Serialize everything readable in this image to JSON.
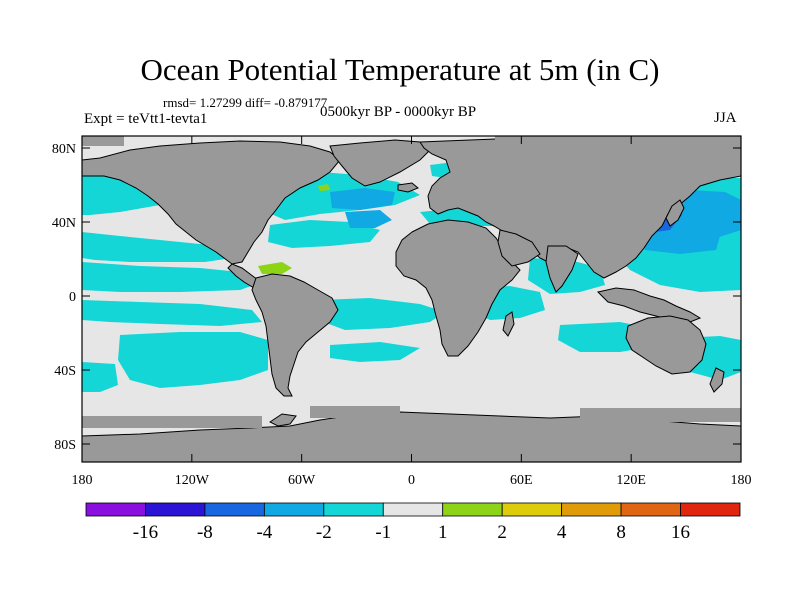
{
  "title": "Ocean Potential Temperature at 5m (in C)",
  "stats": "rmsd= 1.27299 diff= -0.879177",
  "experiment": "Expt = teVtt1-tevta1",
  "period": "0500kyr BP - 0000kyr BP",
  "season": "JJA",
  "lat_ticks": [
    "80N",
    "40N",
    "0",
    "40S",
    "80S"
  ],
  "lat_values": [
    80,
    40,
    0,
    -40,
    -80
  ],
  "lon_ticks": [
    "180",
    "120W",
    "60W",
    "0",
    "60E",
    "120E",
    "180"
  ],
  "lon_values": [
    -180,
    -120,
    -60,
    0,
    60,
    120,
    180
  ],
  "legend": {
    "labels": [
      "-16",
      "-8",
      "-4",
      "-2",
      "-1",
      "1",
      "2",
      "4",
      "8",
      "16"
    ],
    "colors": [
      "#8a10e0",
      "#2b14d6",
      "#1767e0",
      "#10a9e4",
      "#14d6d6",
      "#e6e6e6",
      "#8ed416",
      "#dccc0a",
      "#e09c08",
      "#e06614",
      "#e0260e"
    ]
  },
  "map_colors": {
    "land": "#999999",
    "ocean_neutral": "#e6e6e6",
    "cyan": "#14d6d6",
    "light_blue": "#10a9e4",
    "blue": "#1767e0",
    "green": "#8ed416"
  }
}
